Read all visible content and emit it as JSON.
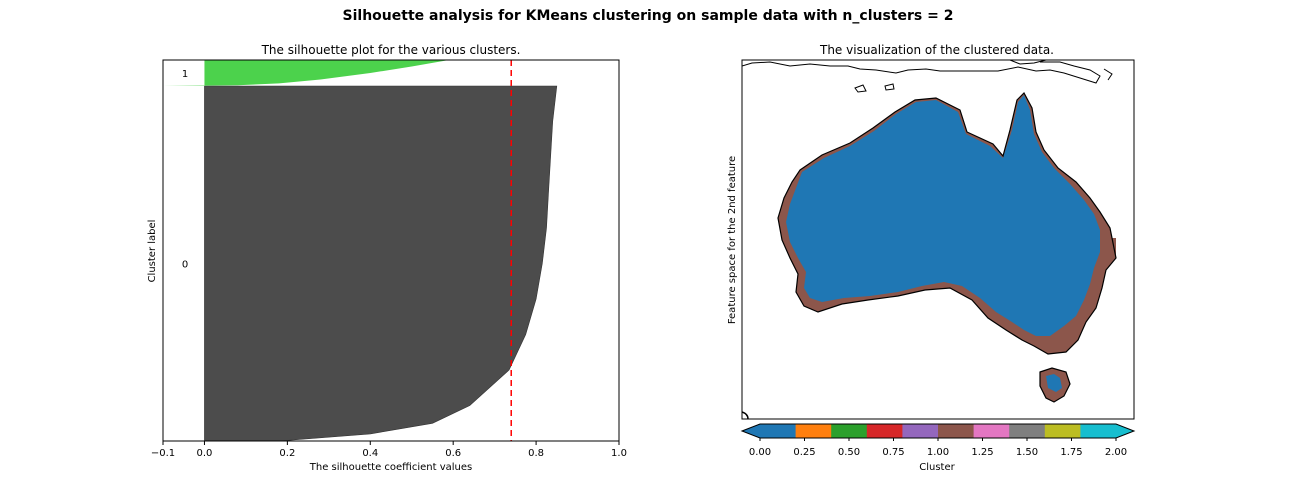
{
  "suptitle": "Silhouette analysis for KMeans clustering on sample data with n_clusters = 2",
  "chart_data": [
    {
      "type": "area",
      "title": "The silhouette plot for the various clusters.",
      "xlabel": "The silhouette coefficient values",
      "ylabel": "Cluster label",
      "xlim": [
        -0.1,
        1.0
      ],
      "xticks": [
        "−0.1",
        "0.0",
        "0.2",
        "0.4",
        "0.6",
        "0.8",
        "1.0"
      ],
      "xtick_values": [
        -0.1,
        0.0,
        0.2,
        0.4,
        0.6,
        0.8,
        1.0
      ],
      "average_silhouette": 0.74,
      "average_line_color": "#ff0000",
      "clusters": [
        {
          "label": "0",
          "color": "#4c4c4c",
          "fraction_of_samples": [
            0.0,
            0.1,
            0.2,
            0.3,
            0.4,
            0.5,
            0.6,
            0.7,
            0.8,
            0.9,
            0.95,
            0.98,
            1.0
          ],
          "silhouette": [
            0.85,
            0.84,
            0.835,
            0.83,
            0.825,
            0.815,
            0.8,
            0.775,
            0.735,
            0.64,
            0.55,
            0.4,
            0.18
          ]
        },
        {
          "label": "1",
          "color": "#4cd24c",
          "fraction_of_samples": [
            0.0,
            0.25,
            0.5,
            0.75,
            0.9,
            0.97,
            1.0
          ],
          "silhouette": [
            0.59,
            0.5,
            0.4,
            0.28,
            0.18,
            0.08,
            -0.1
          ]
        }
      ]
    },
    {
      "type": "heatmap",
      "title": "The visualization of the clustered data.",
      "ylabel": "Feature space for the 2nd feature",
      "colorbar": {
        "label": "Cluster",
        "range": [
          0,
          2
        ],
        "ticks": [
          "0.00",
          "0.25",
          "0.50",
          "0.75",
          "1.00",
          "1.25",
          "1.50",
          "1.75",
          "2.00"
        ],
        "tick_values": [
          0,
          0.25,
          0.5,
          0.75,
          1.0,
          1.25,
          1.5,
          1.75,
          2.0
        ],
        "colors": [
          "#1f77b4",
          "#ff7f0e",
          "#2ca02c",
          "#d62728",
          "#9467bd",
          "#8c564b",
          "#e377c2",
          "#7f7f7f",
          "#bcbd22",
          "#17becf"
        ],
        "extend": "both"
      },
      "cluster_colors": {
        "0": "#1f77b4",
        "1": "#8c564b"
      }
    }
  ]
}
